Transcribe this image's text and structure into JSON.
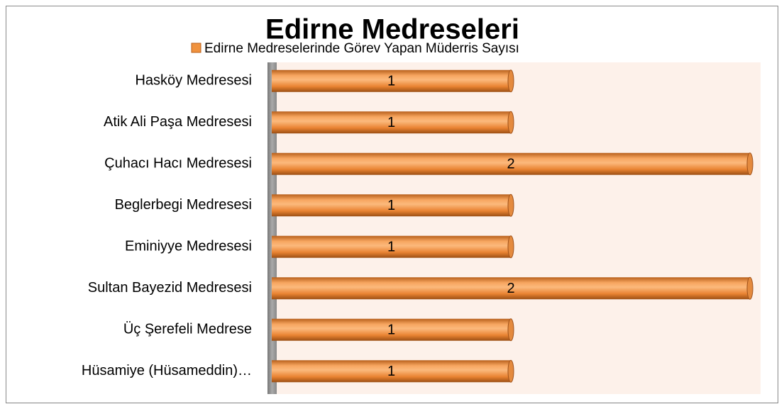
{
  "chart_data": {
    "type": "bar",
    "orientation": "horizontal",
    "title": "Edirne Medreseleri",
    "categories": [
      "Hasköy Medresesi",
      "Atik Ali Paşa Medresesi",
      "Çuhacı Hacı Medresesi",
      "Beglerbegi Medresesi",
      "Eminiyye Medresesi",
      "Sultan Bayezid Medresesi",
      "Üç Şerefeli Medrese",
      "Hüsamiye (Hüsameddin)…"
    ],
    "series": [
      {
        "name": "Edirne Medreselerinde Görev Yapan Müderris Sayısı",
        "color": "#f0923e",
        "values": [
          1,
          1,
          2,
          1,
          1,
          2,
          1,
          1
        ]
      }
    ],
    "xlim": [
      0,
      2
    ],
    "legend": "top"
  }
}
